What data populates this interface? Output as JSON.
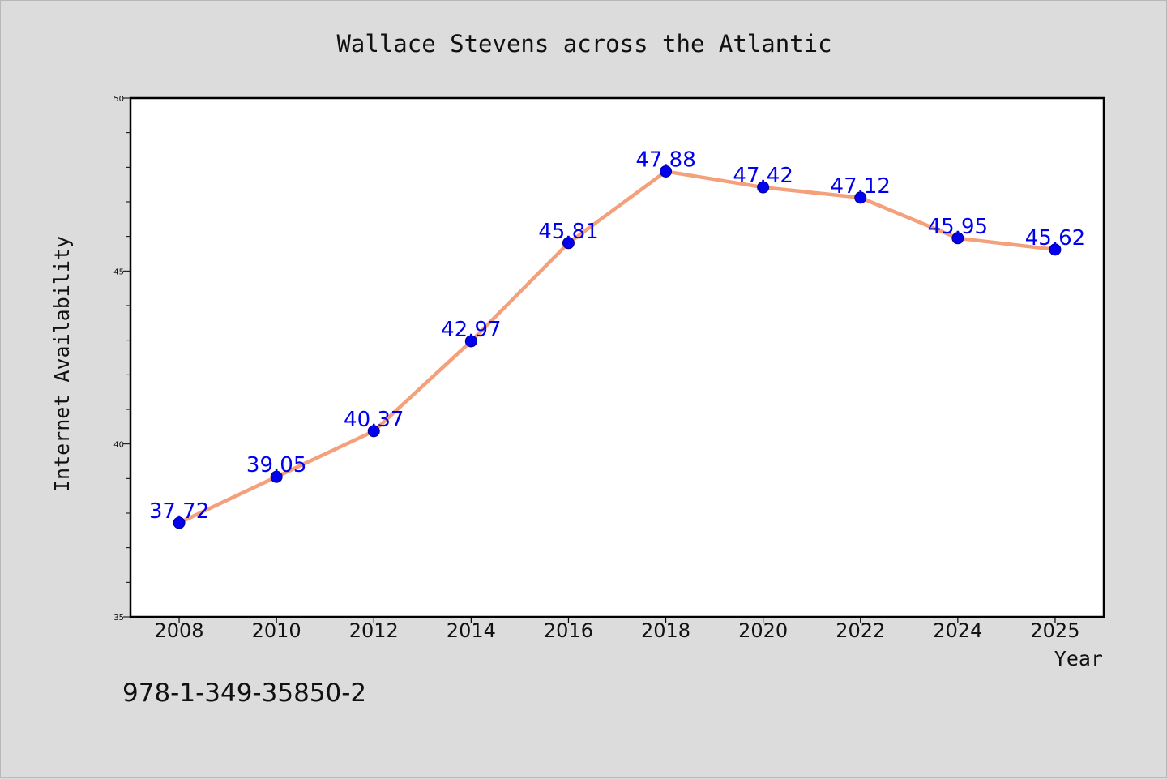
{
  "chart_data": {
    "type": "line",
    "title": "Wallace Stevens across the Atlantic",
    "xlabel": "Year",
    "ylabel": "Internet Availability",
    "categories": [
      "2008",
      "2010",
      "2012",
      "2014",
      "2016",
      "2018",
      "2020",
      "2022",
      "2024",
      "2025"
    ],
    "x": [
      2008,
      2010,
      2012,
      2014,
      2016,
      2018,
      2020,
      2022,
      2024,
      2025
    ],
    "values": [
      37.72,
      39.05,
      40.37,
      42.97,
      45.81,
      47.88,
      47.42,
      47.12,
      45.95,
      45.62
    ],
    "data_labels": [
      "37.72",
      "39.05",
      "40.37",
      "42.97",
      "45.81",
      "47.88",
      "47.42",
      "47.12",
      "45.95",
      "45.62"
    ],
    "ylim": [
      35,
      50
    ],
    "y_ticks": [
      "35",
      "40",
      "45",
      "50"
    ],
    "y_tick_values": [
      35,
      40,
      45,
      50
    ],
    "grid": false,
    "legend": "none",
    "colors": {
      "line": "#f4a07a",
      "marker": "#0000ee",
      "label": "#0000ee",
      "axis": "#000000",
      "background": "#dcdcdc",
      "plot_background": "#ffffff"
    }
  },
  "footer": {
    "isbn": "978-1-349-35850-2"
  }
}
